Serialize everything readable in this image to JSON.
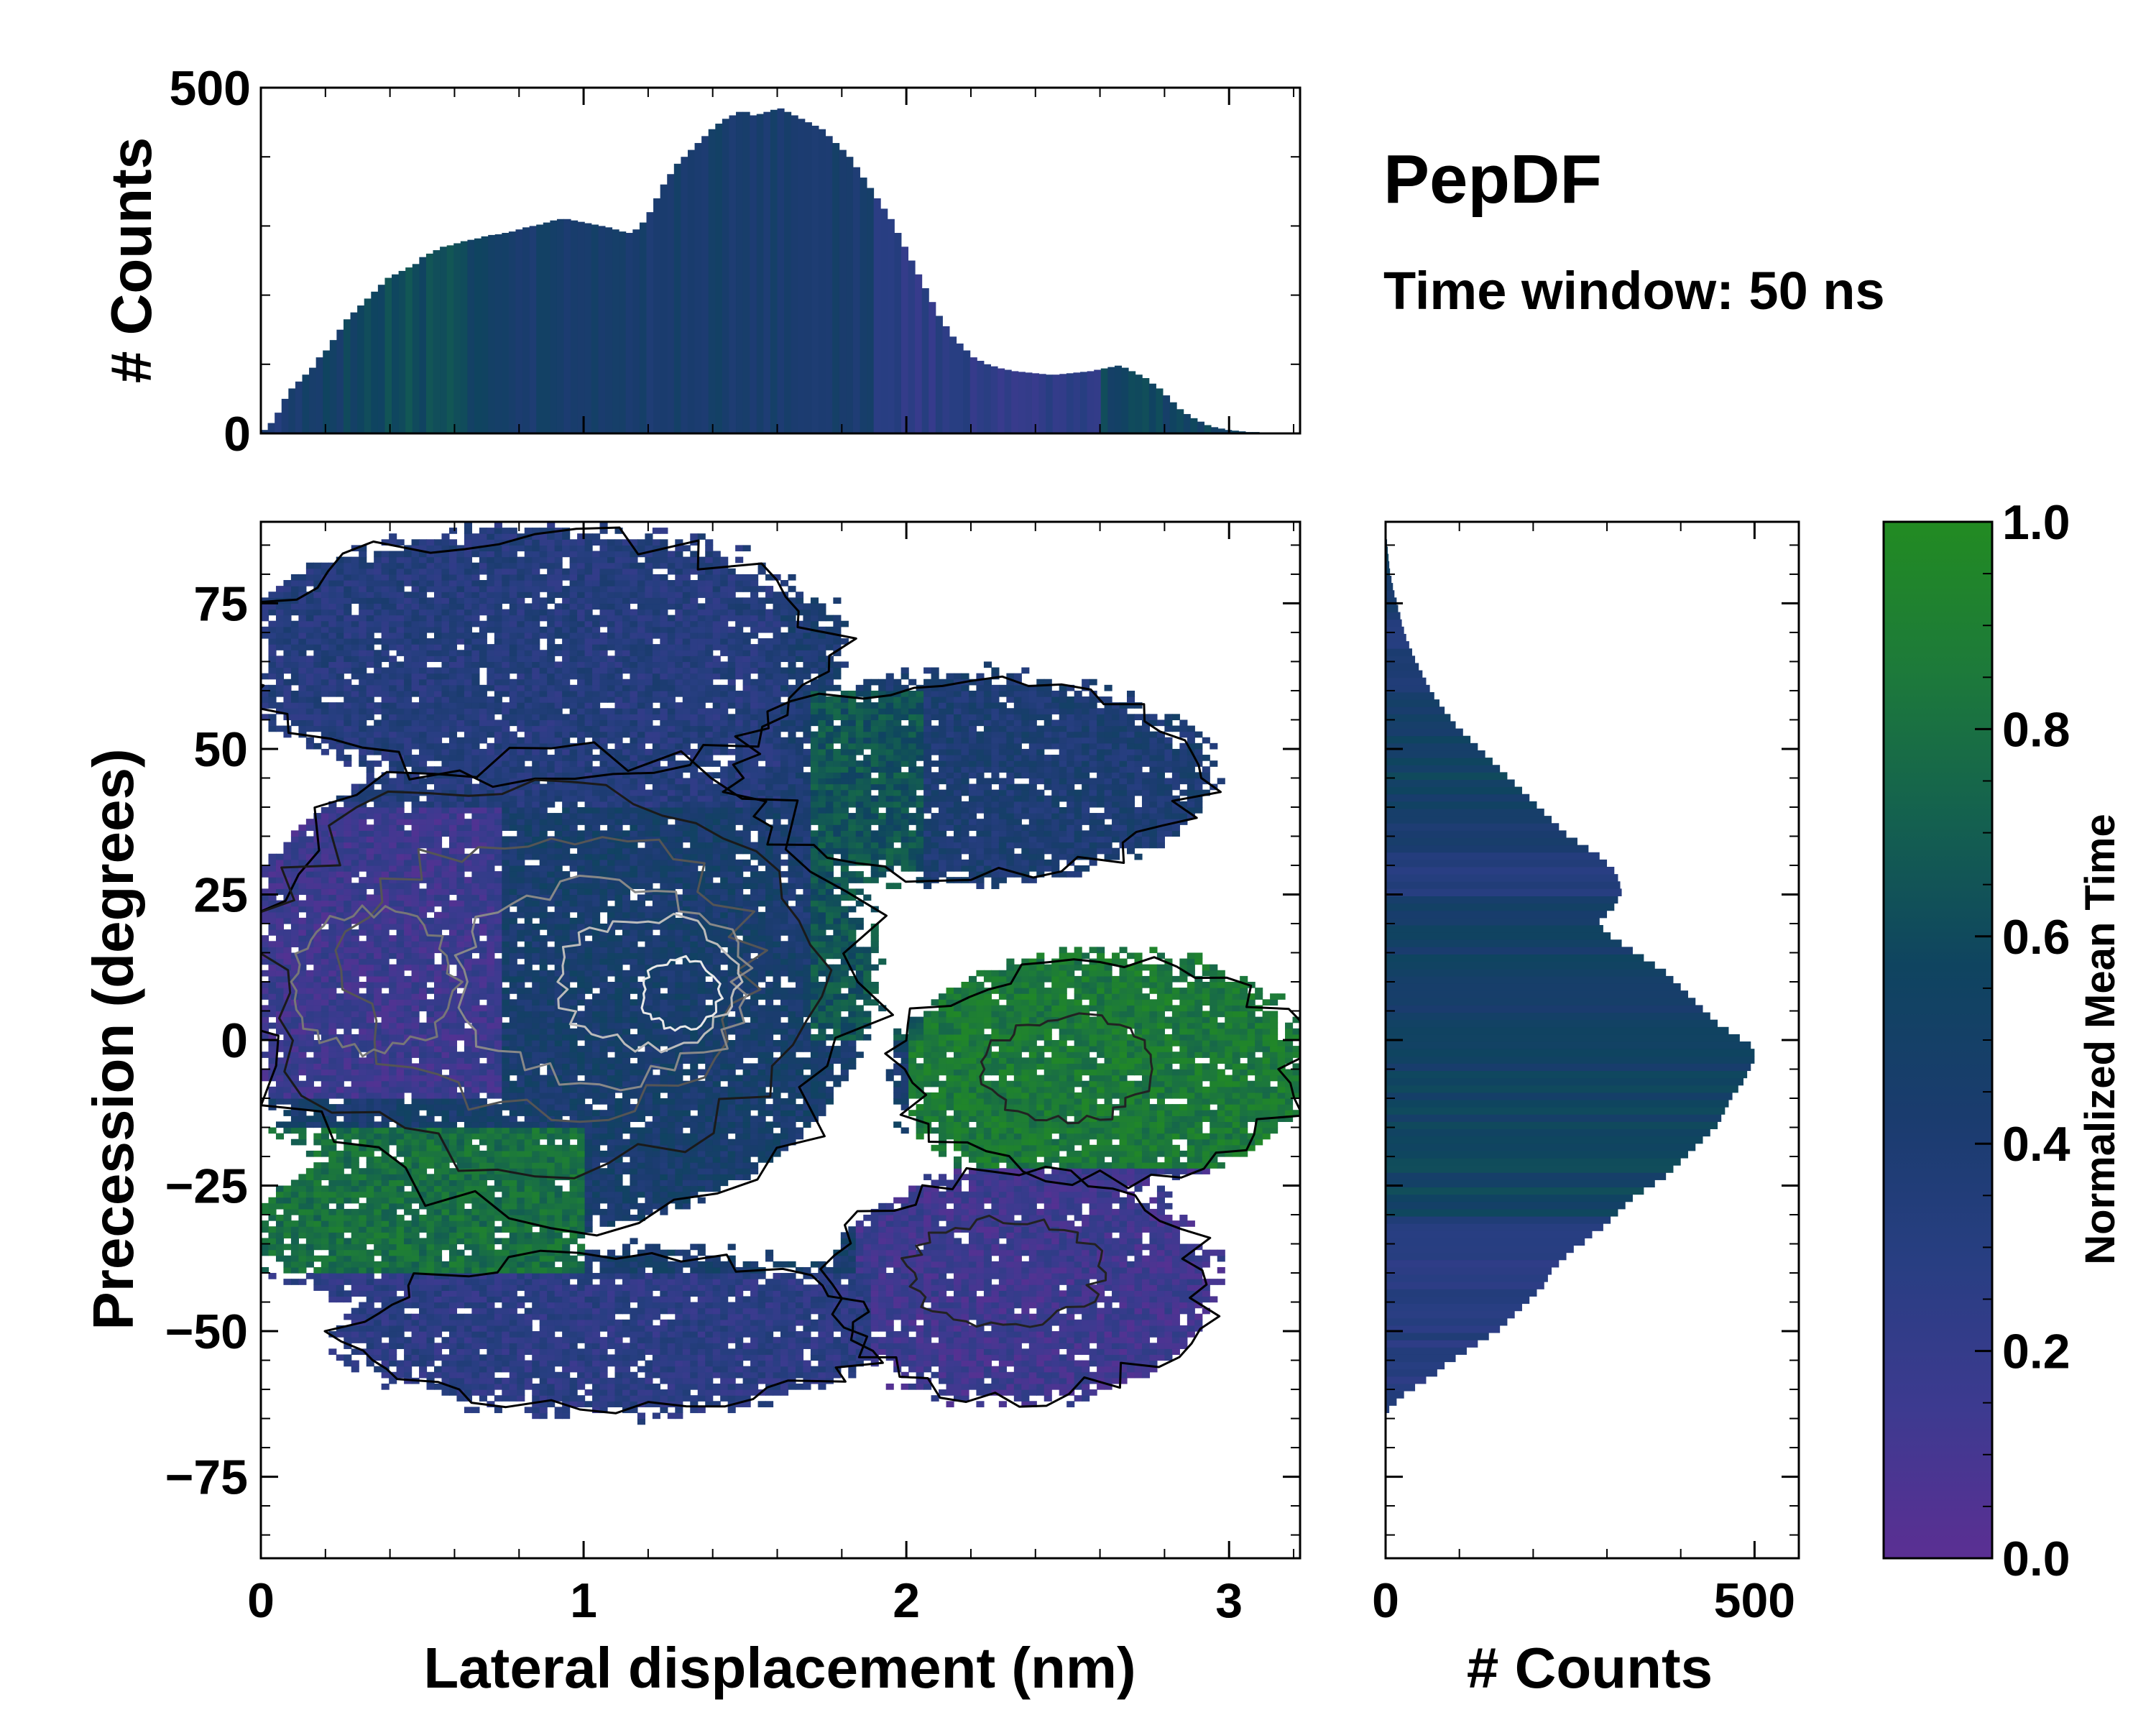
{
  "chart_data": {
    "type": "heatmap",
    "title": "PepDF",
    "subtitle": "Time window: 50 ns",
    "main": {
      "xlabel": "Lateral displacement (nm)",
      "ylabel": "Precession (degrees)",
      "xlim": [
        0,
        3.22
      ],
      "ylim": [
        -89,
        89
      ],
      "xticks": [
        0,
        1,
        2,
        3
      ],
      "yticks": [
        75,
        50,
        25,
        0,
        -25,
        -50,
        -75
      ],
      "ytick_labels": [
        "75",
        "50",
        "25",
        "0",
        "−25",
        "−50",
        "−75"
      ],
      "color_metric": "Normalized Mean Time",
      "regions": [
        {
          "name": "upper-left lobe",
          "x": [
            0.0,
            1.9
          ],
          "y": [
            40,
            88
          ],
          "mean_time": 0.3
        },
        {
          "name": "upper-right arm",
          "x": [
            1.5,
            2.9
          ],
          "y": [
            22,
            65
          ],
          "mean_time": 0.4
        },
        {
          "name": "central dense core",
          "x": [
            0.1,
            1.9
          ],
          "y": [
            -25,
            45
          ],
          "mean_time": 0.45
        },
        {
          "name": "left low-time patch",
          "x": [
            0.0,
            0.8
          ],
          "y": [
            -10,
            40
          ],
          "mean_time": 0.15
        },
        {
          "name": "right green arm",
          "x": [
            2.0,
            3.2
          ],
          "y": [
            -25,
            15
          ],
          "mean_time": 0.85
        },
        {
          "name": "lower-left green band",
          "x": [
            0.15,
            1.0
          ],
          "y": [
            -45,
            -15
          ],
          "mean_time": 0.8
        },
        {
          "name": "lower-right purple lobe",
          "x": [
            1.9,
            2.9
          ],
          "y": [
            -65,
            -20
          ],
          "mean_time": 0.15
        },
        {
          "name": "bottom lobe",
          "x": [
            0.3,
            1.9
          ],
          "y": [
            -65,
            -38
          ],
          "mean_time": 0.25
        }
      ]
    },
    "top_histogram": {
      "ylabel": "# Counts",
      "ylim": [
        0,
        500
      ],
      "yticks": [
        0,
        500
      ],
      "x_range": [
        0,
        3.2
      ],
      "bins": 150,
      "values": [
        5,
        15,
        30,
        50,
        65,
        75,
        85,
        95,
        110,
        120,
        135,
        150,
        165,
        175,
        185,
        195,
        205,
        215,
        225,
        230,
        235,
        240,
        245,
        255,
        260,
        265,
        270,
        272,
        275,
        278,
        280,
        282,
        285,
        287,
        288,
        290,
        292,
        295,
        298,
        300,
        302,
        305,
        308,
        310,
        310,
        308,
        306,
        304,
        302,
        300,
        298,
        295,
        292,
        290,
        295,
        305,
        320,
        340,
        360,
        375,
        390,
        400,
        410,
        420,
        430,
        440,
        448,
        455,
        460,
        465,
        465,
        460,
        462,
        465,
        468,
        470,
        465,
        460,
        455,
        450,
        445,
        440,
        430,
        420,
        410,
        400,
        385,
        370,
        355,
        340,
        325,
        310,
        290,
        270,
        250,
        230,
        210,
        190,
        170,
        155,
        140,
        130,
        120,
        110,
        105,
        100,
        97,
        94,
        92,
        90,
        89,
        88,
        87,
        86,
        85,
        85,
        86,
        87,
        88,
        89,
        90,
        92,
        94,
        96,
        98,
        95,
        90,
        85,
        80,
        72,
        65,
        55,
        45,
        35,
        28,
        22,
        17,
        12,
        9,
        7,
        5,
        4,
        3,
        2,
        2,
        1,
        1,
        1,
        0,
        0
      ],
      "mean_time_colors": "viridis-like gradient per bin"
    },
    "right_histogram": {
      "xlabel": "# Counts",
      "xlim": [
        0,
        560
      ],
      "xticks": [
        0,
        500
      ],
      "y_range": [
        -89,
        89
      ],
      "bins": 120,
      "bin_start": -64,
      "bin_end": 86,
      "values": [
        5,
        15,
        25,
        40,
        55,
        70,
        80,
        95,
        110,
        125,
        140,
        155,
        165,
        175,
        185,
        195,
        205,
        215,
        220,
        225,
        235,
        245,
        255,
        270,
        280,
        295,
        305,
        315,
        325,
        335,
        350,
        365,
        380,
        390,
        400,
        410,
        420,
        430,
        440,
        450,
        455,
        460,
        465,
        470,
        478,
        485,
        490,
        495,
        500,
        500,
        495,
        480,
        465,
        450,
        440,
        430,
        420,
        410,
        400,
        390,
        380,
        365,
        350,
        335,
        320,
        305,
        295,
        290,
        300,
        310,
        315,
        320,
        318,
        315,
        310,
        300,
        290,
        275,
        260,
        245,
        235,
        225,
        215,
        205,
        195,
        185,
        175,
        165,
        155,
        145,
        135,
        125,
        115,
        105,
        95,
        88,
        80,
        73,
        66,
        60,
        55,
        50,
        45,
        40,
        36,
        32,
        28,
        25,
        22,
        20,
        17,
        15,
        12,
        10,
        8,
        6,
        5,
        4,
        3,
        2
      ],
      "mean_time_colors": "viridis-like gradient per bin"
    },
    "colorbar": {
      "label": "Normalized Mean Time",
      "range": [
        0.0,
        1.0
      ],
      "ticks": [
        "0.0",
        "0.2",
        "0.4",
        "0.6",
        "0.8",
        "1.0"
      ],
      "colormap": [
        "#5b2f93",
        "#3d3a90",
        "#283e82",
        "#1a3c6e",
        "#0f4460",
        "#14614f",
        "#1d7a3a",
        "#228b22"
      ]
    }
  }
}
